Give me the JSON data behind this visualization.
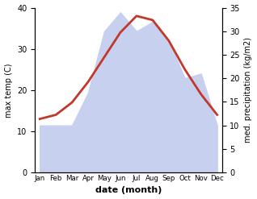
{
  "months": [
    "Jan",
    "Feb",
    "Mar",
    "Apr",
    "May",
    "Jun",
    "Jul",
    "Aug",
    "Sep",
    "Oct",
    "Nov",
    "Dec"
  ],
  "temp": [
    13,
    14,
    17,
    22,
    28,
    34,
    38,
    37,
    32,
    25,
    19,
    14
  ],
  "precip": [
    10,
    10,
    10,
    17,
    30,
    34,
    30,
    32,
    28,
    20,
    21,
    10
  ],
  "temp_color": "#c0392b",
  "precip_fill_color": "#c8d0f0",
  "xlabel": "date (month)",
  "ylabel_left": "max temp (C)",
  "ylabel_right": "med. precipitation (kg/m2)",
  "ylim_left": [
    0,
    40
  ],
  "ylim_right": [
    0,
    35
  ],
  "yticks_left": [
    0,
    10,
    20,
    30,
    40
  ],
  "yticks_right": [
    0,
    5,
    10,
    15,
    20,
    25,
    30,
    35
  ],
  "background_color": "#ffffff",
  "line_width": 2.0
}
